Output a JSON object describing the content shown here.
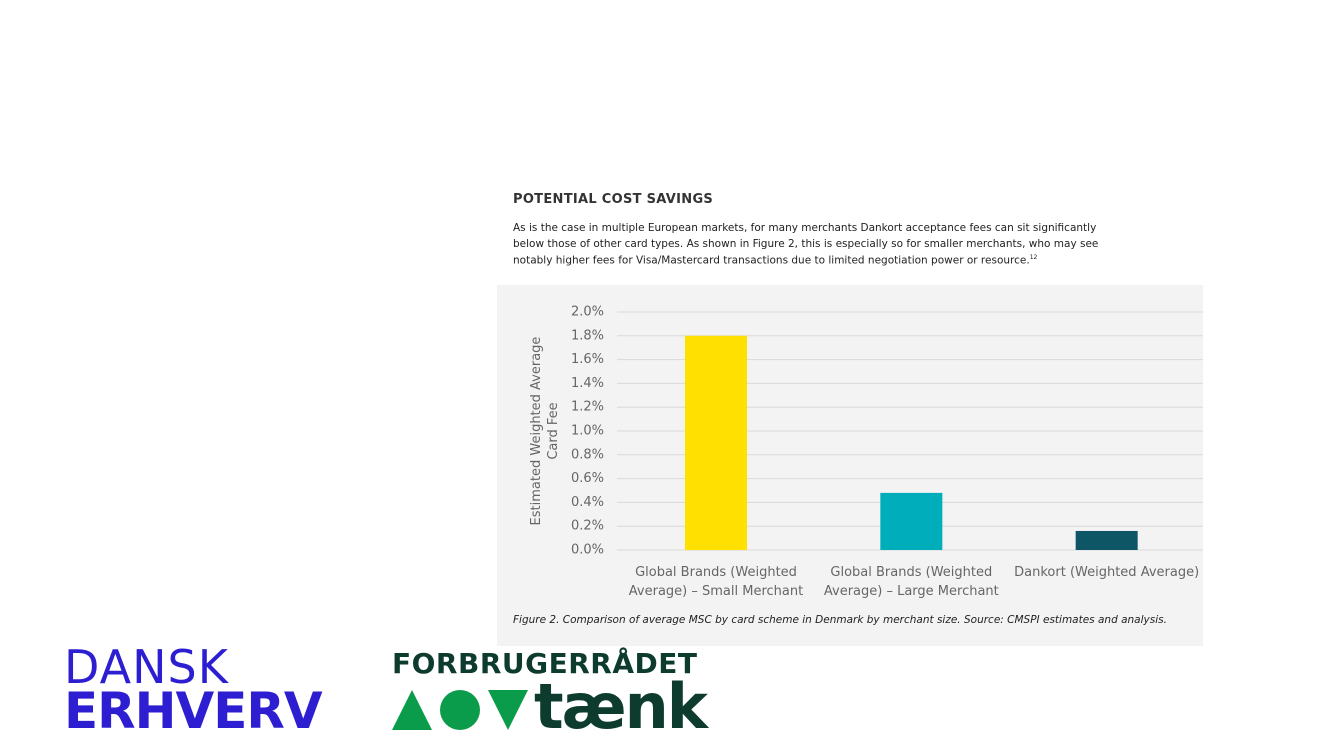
{
  "heading": "POTENTIAL COST SAVINGS",
  "paragraph_lines": [
    "As is the case in multiple European markets, for many merchants Dankort acceptance fees can sit significantly",
    "below those of other card types. As shown in Figure 2, this is especially so for smaller merchants, who may see",
    "notably higher fees for Visa/Mastercard transactions due to limited negotiation power or resource."
  ],
  "footnote_ref": "12",
  "chart_data": {
    "type": "bar",
    "ylabel": "Estimated Weighted Average Card Fee",
    "categories": [
      "Global Brands (Weighted Average) – Small Merchant",
      "Global Brands (Weighted Average) – Large Merchant",
      "Dankort (Weighted Average)"
    ],
    "values": [
      1.8,
      0.48,
      0.16
    ],
    "colors": [
      "#ffe000",
      "#00adbb",
      "#0e5566"
    ],
    "ylim": [
      0,
      2.0
    ],
    "yticks": [
      {
        "value": 0,
        "label": "0.0%"
      },
      {
        "value": 0.2,
        "label": "0.2%"
      },
      {
        "value": 0.4,
        "label": "0.4%"
      },
      {
        "value": 0.6,
        "label": "0.6%"
      },
      {
        "value": 0.8,
        "label": "0.8%"
      },
      {
        "value": 1.0,
        "label": "1.0%"
      },
      {
        "value": 1.2,
        "label": "1.2%"
      },
      {
        "value": 1.4,
        "label": "1.4%"
      },
      {
        "value": 1.6,
        "label": "1.6%"
      },
      {
        "value": 1.8,
        "label": "1.8%"
      },
      {
        "value": 2.0,
        "label": "2.0%"
      }
    ],
    "grid": true
  },
  "caption": "Figure 2. Comparison of average MSC by card scheme in Denmark by merchant size. Source: CMSPI estimates and analysis.",
  "logos": {
    "dansk": "DANSK",
    "erhverv": "ERHVERV",
    "forbrugerraadet": "FORBRUGERRÅDET",
    "taenk": "tænk"
  }
}
